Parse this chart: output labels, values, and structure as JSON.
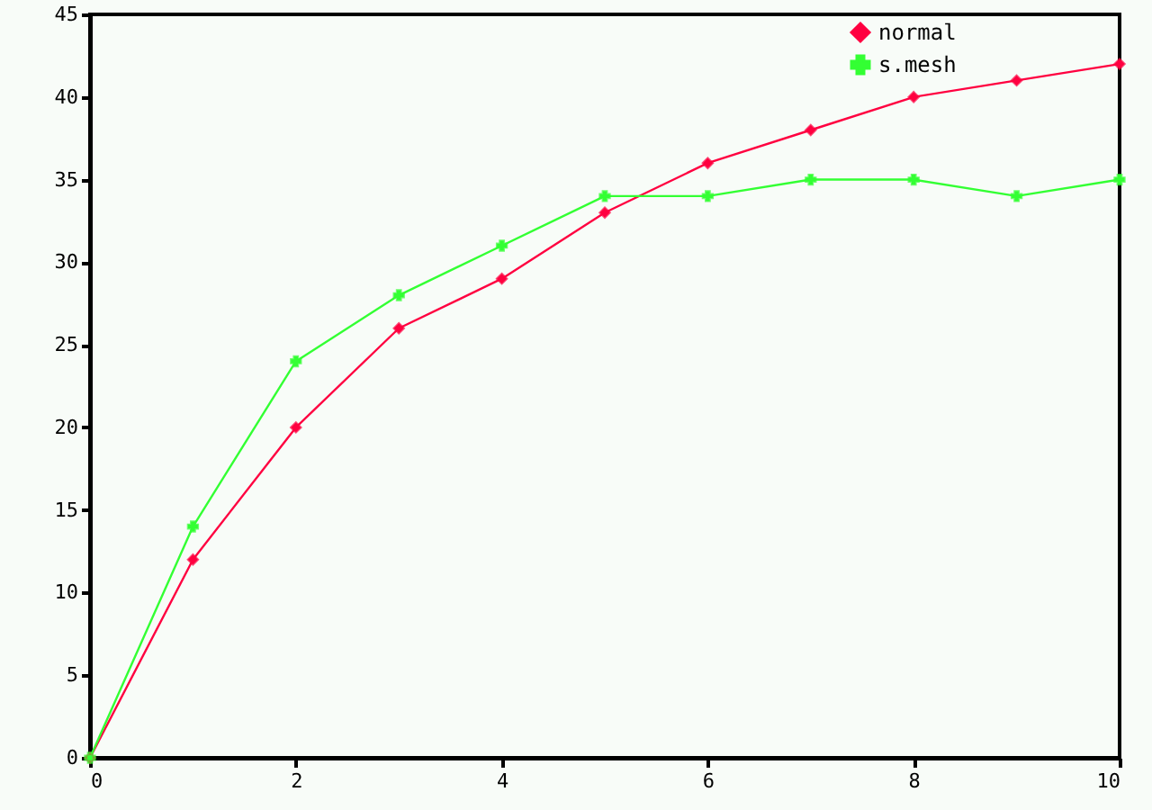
{
  "chart_data": {
    "type": "line",
    "x": [
      0,
      1,
      2,
      3,
      4,
      5,
      6,
      7,
      8,
      9,
      10
    ],
    "series": [
      {
        "name": "normal",
        "color": "#ff0040",
        "marker": "diamond",
        "values": [
          0,
          12,
          20,
          26,
          29,
          33,
          36,
          38,
          40,
          41,
          42
        ]
      },
      {
        "name": "s.mesh",
        "color": "#33ff33",
        "marker": "cross",
        "values": [
          0,
          14,
          24,
          28,
          31,
          34,
          34,
          35,
          35,
          34,
          35
        ]
      }
    ],
    "xlim": [
      0,
      10
    ],
    "xticks": [
      0,
      2,
      4,
      6,
      8,
      10
    ],
    "ylim": [
      0,
      45
    ],
    "yticks": [
      0,
      5,
      10,
      15,
      20,
      25,
      30,
      35,
      40,
      45
    ],
    "legend": "top right",
    "grid": false
  }
}
